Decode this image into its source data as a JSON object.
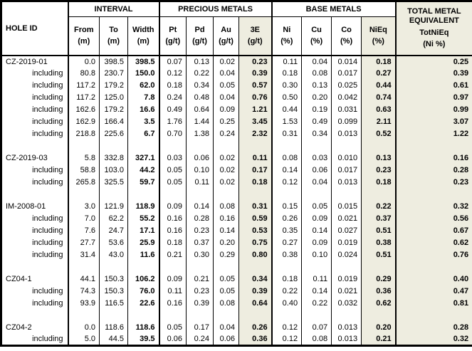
{
  "colors": {
    "highlight_bg": "#eeede0",
    "border": "#000000",
    "background": "#ffffff"
  },
  "chart_data": {
    "type": "table",
    "title": "Drill hole assay results table",
    "column_groups": [
      {
        "label": "",
        "span": 1
      },
      {
        "label": "INTERVAL",
        "span": 3
      },
      {
        "label": "PRECIOUS METALS",
        "span": 4
      },
      {
        "label": "BASE METALS",
        "span": 4
      },
      {
        "label": "TOTAL METAL EQUIVALENT",
        "span": 1
      }
    ],
    "columns": [
      {
        "name": "HOLE ID",
        "unit": ""
      },
      {
        "name": "From",
        "unit": "(m)"
      },
      {
        "name": "To",
        "unit": "(m)"
      },
      {
        "name": "Width",
        "unit": "(m)"
      },
      {
        "name": "Pt",
        "unit": "(g/t)"
      },
      {
        "name": "Pd",
        "unit": "(g/t)"
      },
      {
        "name": "Au",
        "unit": "(g/t)"
      },
      {
        "name": "3E",
        "unit": "(g/t)"
      },
      {
        "name": "Ni",
        "unit": "(%)"
      },
      {
        "name": "Cu",
        "unit": "(%)"
      },
      {
        "name": "Co",
        "unit": "(%)"
      },
      {
        "name": "NiEq",
        "unit": "(%)"
      },
      {
        "name": "TotNiEq",
        "unit": "(Ni %)"
      }
    ],
    "groups": [
      {
        "rows": [
          {
            "label": "CZ-2019-01",
            "values": [
              "0.0",
              "398.5",
              "398.5",
              "0.07",
              "0.13",
              "0.02",
              "0.23",
              "0.11",
              "0.04",
              "0.014",
              "0.18",
              "0.25"
            ]
          },
          {
            "label": "including",
            "values": [
              "80.8",
              "230.7",
              "150.0",
              "0.12",
              "0.22",
              "0.04",
              "0.39",
              "0.18",
              "0.08",
              "0.017",
              "0.27",
              "0.39"
            ]
          },
          {
            "label": "including",
            "values": [
              "117.2",
              "179.2",
              "62.0",
              "0.18",
              "0.34",
              "0.05",
              "0.57",
              "0.30",
              "0.13",
              "0.025",
              "0.44",
              "0.61"
            ]
          },
          {
            "label": "including",
            "values": [
              "117.2",
              "125.0",
              "7.8",
              "0.24",
              "0.48",
              "0.04",
              "0.76",
              "0.50",
              "0.20",
              "0.042",
              "0.74",
              "0.97"
            ]
          },
          {
            "label": "including",
            "values": [
              "162.6",
              "179.2",
              "16.6",
              "0.49",
              "0.64",
              "0.09",
              "1.21",
              "0.44",
              "0.19",
              "0.031",
              "0.63",
              "0.99"
            ]
          },
          {
            "label": "including",
            "values": [
              "162.9",
              "166.4",
              "3.5",
              "1.76",
              "1.44",
              "0.25",
              "3.45",
              "1.53",
              "0.49",
              "0.099",
              "2.11",
              "3.07"
            ]
          },
          {
            "label": "including",
            "values": [
              "218.8",
              "225.6",
              "6.7",
              "0.70",
              "1.38",
              "0.24",
              "2.32",
              "0.31",
              "0.34",
              "0.013",
              "0.52",
              "1.22"
            ]
          }
        ]
      },
      {
        "rows": [
          {
            "label": "CZ-2019-03",
            "values": [
              "5.8",
              "332.8",
              "327.1",
              "0.03",
              "0.06",
              "0.02",
              "0.11",
              "0.08",
              "0.03",
              "0.010",
              "0.13",
              "0.16"
            ]
          },
          {
            "label": "including",
            "values": [
              "58.8",
              "103.0",
              "44.2",
              "0.05",
              "0.10",
              "0.02",
              "0.17",
              "0.14",
              "0.06",
              "0.017",
              "0.23",
              "0.28"
            ]
          },
          {
            "label": "including",
            "values": [
              "265.8",
              "325.5",
              "59.7",
              "0.05",
              "0.11",
              "0.02",
              "0.18",
              "0.12",
              "0.04",
              "0.013",
              "0.18",
              "0.23"
            ]
          }
        ]
      },
      {
        "rows": [
          {
            "label": "IM-2008-01",
            "values": [
              "3.0",
              "121.9",
              "118.9",
              "0.09",
              "0.14",
              "0.08",
              "0.31",
              "0.15",
              "0.05",
              "0.015",
              "0.22",
              "0.32"
            ]
          },
          {
            "label": "including",
            "values": [
              "7.0",
              "62.2",
              "55.2",
              "0.16",
              "0.28",
              "0.16",
              "0.59",
              "0.26",
              "0.09",
              "0.021",
              "0.37",
              "0.56"
            ]
          },
          {
            "label": "including",
            "values": [
              "7.6",
              "24.7",
              "17.1",
              "0.16",
              "0.23",
              "0.14",
              "0.53",
              "0.35",
              "0.14",
              "0.027",
              "0.51",
              "0.67"
            ]
          },
          {
            "label": "including",
            "values": [
              "27.7",
              "53.6",
              "25.9",
              "0.18",
              "0.37",
              "0.20",
              "0.75",
              "0.27",
              "0.09",
              "0.019",
              "0.38",
              "0.62"
            ]
          },
          {
            "label": "including",
            "values": [
              "31.4",
              "43.0",
              "11.6",
              "0.21",
              "0.30",
              "0.29",
              "0.80",
              "0.38",
              "0.10",
              "0.024",
              "0.51",
              "0.76"
            ]
          }
        ]
      },
      {
        "rows": [
          {
            "label": "CZ04-1",
            "values": [
              "44.1",
              "150.3",
              "106.2",
              "0.09",
              "0.21",
              "0.05",
              "0.34",
              "0.18",
              "0.11",
              "0.019",
              "0.29",
              "0.40"
            ]
          },
          {
            "label": "including",
            "values": [
              "74.3",
              "150.3",
              "76.0",
              "0.11",
              "0.23",
              "0.05",
              "0.39",
              "0.22",
              "0.14",
              "0.021",
              "0.36",
              "0.47"
            ]
          },
          {
            "label": "including",
            "values": [
              "93.9",
              "116.5",
              "22.6",
              "0.16",
              "0.39",
              "0.08",
              "0.64",
              "0.40",
              "0.22",
              "0.032",
              "0.62",
              "0.81"
            ]
          }
        ]
      },
      {
        "rows": [
          {
            "label": "CZ04-2",
            "values": [
              "0.0",
              "118.6",
              "118.6",
              "0.05",
              "0.17",
              "0.04",
              "0.26",
              "0.12",
              "0.07",
              "0.013",
              "0.20",
              "0.28"
            ]
          },
          {
            "label": "including",
            "values": [
              "5.0",
              "44.5",
              "39.5",
              "0.06",
              "0.24",
              "0.06",
              "0.36",
              "0.12",
              "0.08",
              "0.013",
              "0.21",
              "0.32"
            ]
          }
        ]
      }
    ]
  }
}
